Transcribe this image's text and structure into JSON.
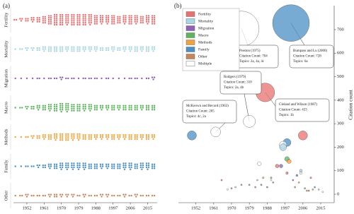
{
  "chart_data": [
    {
      "type": "swarm",
      "label": "(a)",
      "x": [
        1946,
        1949,
        1952,
        1955,
        1958,
        1961,
        1964,
        1967,
        1970,
        1973,
        1976,
        1979,
        1982,
        1985,
        1988,
        1991,
        1994,
        1997,
        2000,
        2003,
        2006,
        2009,
        2012,
        2015,
        2018
      ],
      "xlim": [
        1945,
        2020
      ],
      "xticks": [
        1952,
        1961,
        1970,
        1979,
        1988,
        1997,
        2006,
        2015
      ],
      "series": [
        {
          "name": "Fertility",
          "color": "#e8706f",
          "values": [
            2,
            3,
            4,
            5,
            6,
            8,
            10,
            12,
            12,
            11,
            12,
            12,
            12,
            11,
            10,
            9,
            9,
            10,
            8,
            9,
            10,
            9,
            8,
            9,
            10
          ]
        },
        {
          "name": "Mortality",
          "color": "#a9d6e5",
          "values": [
            1,
            2,
            3,
            3,
            4,
            5,
            6,
            6,
            6,
            5,
            6,
            6,
            5,
            5,
            5,
            4,
            4,
            5,
            4,
            5,
            5,
            6,
            5,
            6,
            5
          ]
        },
        {
          "name": "Migration",
          "color": "#8e63b5",
          "values": [
            1,
            1,
            1,
            1,
            2,
            1,
            2,
            2,
            3,
            2,
            2,
            1,
            2,
            2,
            2,
            1,
            2,
            1,
            1,
            1,
            2,
            2,
            1,
            2,
            3
          ]
        },
        {
          "name": "Macro",
          "color": "#5fb55f",
          "values": [
            1,
            2,
            3,
            4,
            5,
            6,
            7,
            8,
            9,
            9,
            8,
            8,
            7,
            7,
            6,
            5,
            5,
            6,
            5,
            6,
            6,
            6,
            5,
            6,
            6
          ]
        },
        {
          "name": "Methods",
          "color": "#f0a23c",
          "values": [
            1,
            1,
            2,
            3,
            4,
            5,
            6,
            7,
            8,
            8,
            7,
            7,
            6,
            6,
            5,
            5,
            5,
            6,
            5,
            5,
            6,
            6,
            5,
            6,
            5
          ]
        },
        {
          "name": "Family",
          "color": "#4a8fc5",
          "values": [
            1,
            1,
            2,
            2,
            3,
            4,
            5,
            6,
            7,
            7,
            7,
            7,
            7,
            6,
            6,
            5,
            5,
            6,
            6,
            7,
            7,
            6,
            7,
            7,
            6
          ]
        },
        {
          "name": "Other",
          "color": "#c7855b",
          "values": [
            1,
            2,
            3,
            2,
            2,
            2,
            3,
            4,
            3,
            3,
            3,
            2,
            3,
            2,
            2,
            3,
            3,
            2,
            2,
            3,
            2,
            3,
            2,
            2,
            2
          ]
        }
      ]
    },
    {
      "type": "bubble",
      "label": "(b)",
      "ylabel": "Citation count",
      "legend": "upper left",
      "xlim": [
        1945,
        2020
      ],
      "xticks": [
        1952,
        1961,
        1970,
        1979,
        1988,
        1997,
        2006,
        2015
      ],
      "ylim": [
        -30,
        790
      ],
      "yticks": [
        0,
        100,
        200,
        300,
        400,
        500,
        600,
        700
      ],
      "series": [
        {
          "name": "Fertility",
          "color": "#e8706f",
          "x": [
            1987,
            2006,
            1993,
            1965,
            1998,
            2010,
            1975,
            1982,
            1970,
            2008
          ],
          "values": [
            433,
            250,
            120,
            60,
            90,
            70,
            40,
            30,
            25,
            15
          ]
        },
        {
          "name": "Mortality",
          "color": "#a9d6e5",
          "x": [
            1996,
            2005,
            1983,
            1972,
            2014
          ],
          "values": [
            200,
            100,
            60,
            30,
            20
          ]
        },
        {
          "name": "Migration",
          "color": "#8e63b5",
          "x": [
            1995,
            2001,
            1988
          ],
          "values": [
            120,
            60,
            30
          ]
        },
        {
          "name": "Macro",
          "color": "#5fb55f",
          "x": [
            1998,
            1990,
            1979,
            2007
          ],
          "values": [
            150,
            70,
            40,
            25
          ]
        },
        {
          "name": "Methods",
          "color": "#f0a23c",
          "x": [
            1999,
            1986,
            2004,
            2011
          ],
          "values": [
            140,
            70,
            50,
            20
          ]
        },
        {
          "name": "Family",
          "color": "#4a8fc5",
          "x": [
            2000,
            1950,
            1998,
            2003,
            1985,
            2012
          ],
          "values": [
            728,
            250,
            220,
            80,
            40,
            30
          ]
        },
        {
          "name": "Other",
          "color": "#c7855b",
          "x": [
            1991,
            2002,
            2009
          ],
          "values": [
            50,
            30,
            15
          ]
        },
        {
          "name": "Multiple",
          "color": "#ffffff",
          "x": [
            1975,
            1979,
            1962,
            1996,
            1984,
            2005,
            1990,
            1968,
            2016
          ],
          "values": [
            704,
            310,
            265,
            210,
            130,
            90,
            60,
            20,
            10
          ]
        }
      ],
      "annotations": [
        {
          "lines": [
            "Preston (1975)",
            "Citation Count: 704",
            "Topics: 2a, 4a, 4c"
          ]
        },
        {
          "lines": [
            "Bumpass and Lu (2000)",
            "Citation Count: 728",
            "Topics: 6a"
          ]
        },
        {
          "lines": [
            "Rodgers (1979)",
            "Citation Count: 310",
            "Topics: 2a, 4b"
          ]
        },
        {
          "lines": [
            "McKeown and Record (1962)",
            "Citation Count: 265",
            "Topics: 4c, 2a"
          ]
        },
        {
          "lines": [
            "Cleland and Wilson (1987)",
            "Citation Count: 433",
            "Topics: 1b"
          ]
        }
      ]
    }
  ]
}
